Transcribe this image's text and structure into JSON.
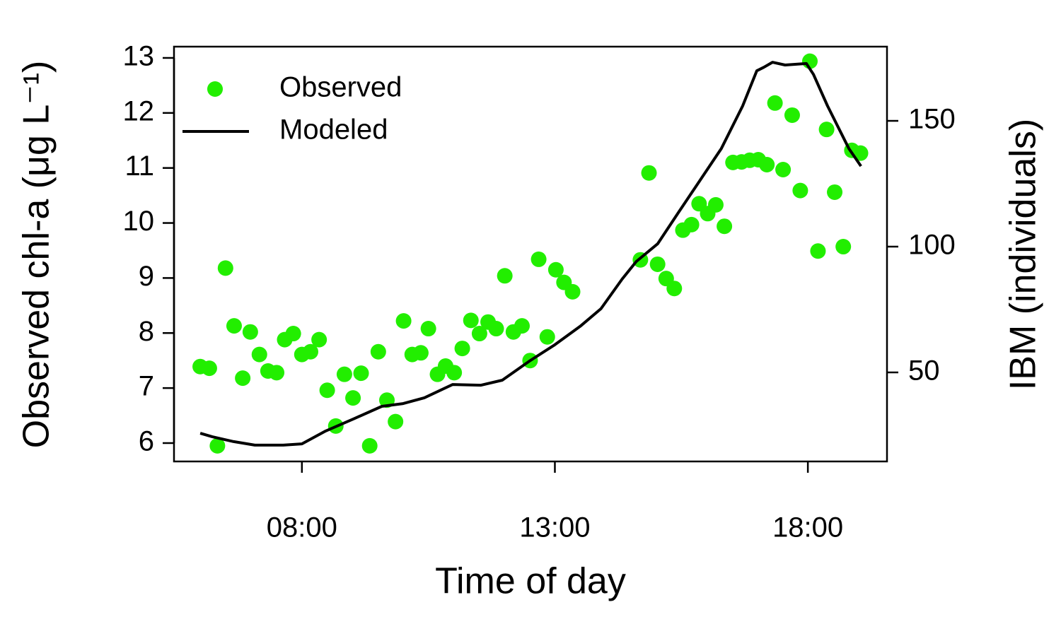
{
  "chart_data": {
    "type": "combo",
    "xlabel": "Time of day",
    "ylabel": "Observed chl-a (μg L⁻¹)",
    "y2label": "IBM (individuals)",
    "xlim": [
      5.472,
      19.564
    ],
    "xticks": [
      {
        "value": 8,
        "label": "08:00"
      },
      {
        "value": 13,
        "label": "13:00"
      },
      {
        "value": 18,
        "label": "18:00"
      }
    ],
    "ylim": [
      5.666,
      13.205
    ],
    "yticks": [
      6,
      7,
      8,
      9,
      10,
      11,
      12,
      13
    ],
    "y2lim": [
      14.6,
      179.5
    ],
    "y2ticks": [
      50,
      100,
      150
    ],
    "legend": "top-left",
    "series": [
      {
        "name": "Observed",
        "type": "scatter",
        "color": "#22ee00",
        "x": [
          5.99,
          6.17,
          6.33,
          6.49,
          6.66,
          6.83,
          6.98,
          7.16,
          7.33,
          7.5,
          7.66,
          7.83,
          8.0,
          8.17,
          8.34,
          8.5,
          8.67,
          8.84,
          9.01,
          9.17,
          9.34,
          9.51,
          9.68,
          9.85,
          10.01,
          10.18,
          10.35,
          10.5,
          10.68,
          10.84,
          11.01,
          11.17,
          11.34,
          11.51,
          11.68,
          11.84,
          12.01,
          12.18,
          12.35,
          12.51,
          12.68,
          12.85,
          13.02,
          13.18,
          13.35,
          14.69,
          14.86,
          15.03,
          15.2,
          15.36,
          15.53,
          15.7,
          15.85,
          16.02,
          16.18,
          16.35,
          16.52,
          16.69,
          16.85,
          17.02,
          17.19,
          17.35,
          17.51,
          17.69,
          17.85,
          18.04,
          18.2,
          18.37,
          18.53,
          18.7,
          18.87,
          19.04
        ],
        "values": [
          7.39,
          7.36,
          5.95,
          9.18,
          8.13,
          7.18,
          8.02,
          7.61,
          7.31,
          7.28,
          7.88,
          7.99,
          7.61,
          7.66,
          7.88,
          6.96,
          6.31,
          7.25,
          6.82,
          7.27,
          5.95,
          7.66,
          6.78,
          6.39,
          8.22,
          7.61,
          7.64,
          8.08,
          7.25,
          7.4,
          7.28,
          7.72,
          8.23,
          7.99,
          8.2,
          8.08,
          9.04,
          8.02,
          8.13,
          7.5,
          9.34,
          7.93,
          9.15,
          8.92,
          8.75,
          9.33,
          10.91,
          9.25,
          8.99,
          8.81,
          9.87,
          9.97,
          10.35,
          10.17,
          10.33,
          9.94,
          11.1,
          11.11,
          11.14,
          11.15,
          11.06,
          12.18,
          10.97,
          11.96,
          10.59,
          12.94,
          9.49,
          11.7,
          10.56,
          9.57,
          11.32,
          11.27
        ]
      },
      {
        "name": "Modeled",
        "type": "line",
        "color": "#000000",
        "axis": "y2",
        "x": [
          5.99,
          6.23,
          6.65,
          7.07,
          7.63,
          8.0,
          8.47,
          9.02,
          9.58,
          10.0,
          10.42,
          10.98,
          11.54,
          11.96,
          12.52,
          13.0,
          13.5,
          13.91,
          14.33,
          14.61,
          15.03,
          15.45,
          15.87,
          16.29,
          16.71,
          16.99,
          17.13,
          17.3,
          17.55,
          17.97,
          18.11,
          18.39,
          18.81,
          19.05
        ],
        "values": [
          25.8,
          24.4,
          22.5,
          21.1,
          21.1,
          21.6,
          26.7,
          31.5,
          36.5,
          37.6,
          39.9,
          45.2,
          44.9,
          46.9,
          54.8,
          61.0,
          68.3,
          75.3,
          87.1,
          94.1,
          101.1,
          113.8,
          126.4,
          139.0,
          155.9,
          169.9,
          171.3,
          173.3,
          172.2,
          172.8,
          168.5,
          155.9,
          139.0,
          132.0
        ]
      }
    ]
  }
}
